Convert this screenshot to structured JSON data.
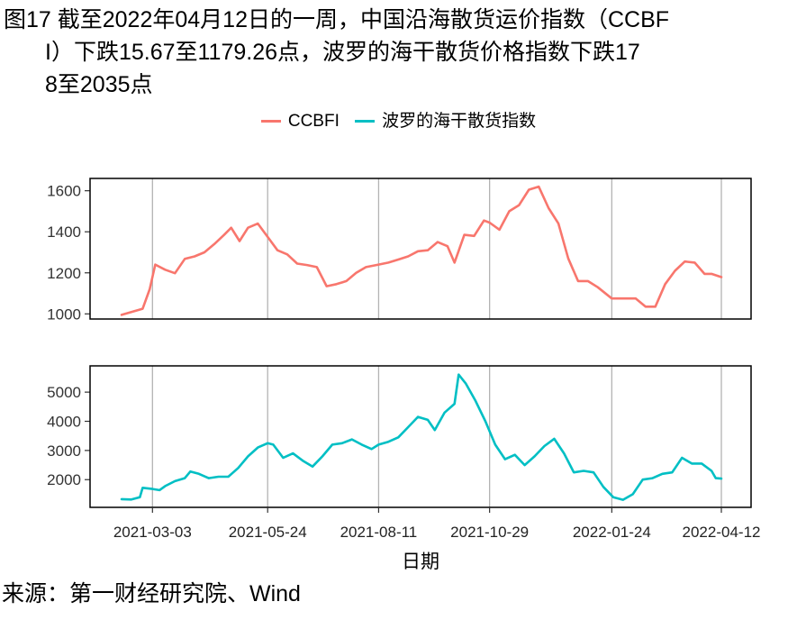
{
  "figure": {
    "title_line1": "图17  截至2022年04月12日的一周，中国沿海散货运价指数（CCBF",
    "title_line2": "I）下跌15.67至1179.26点，波罗的海干散货价格指数下跌17",
    "title_line3": "8至2035点",
    "source": "来源：第一财经研究院、Wind"
  },
  "chart_data": {
    "type": "line",
    "title": "截至2022年04月12日的一周，中国沿海散货运价指数（CCBFI）下跌15.67至1179.26点，波罗的海干散货价格指数下跌178至2035点",
    "xlabel": "日期",
    "legend_position": "top",
    "grid": "vertical",
    "x_ticks": [
      "2021-03-03",
      "2021-05-24",
      "2021-08-11",
      "2021-10-29",
      "2022-01-24",
      "2022-04-12"
    ],
    "xlim": [
      "2021-02-09",
      "2022-04-12"
    ],
    "colors": {
      "ccbfi": "#F8766D",
      "bdi": "#00BFC4"
    },
    "panels": [
      {
        "series_name": "CCBFI",
        "color": "#F8766D",
        "yticks": [
          1000,
          1200,
          1400,
          1600
        ],
        "ylim": [
          975,
          1660
        ],
        "points": [
          [
            "2021-02-09",
            995
          ],
          [
            "2021-02-19",
            1015
          ],
          [
            "2021-02-24",
            1025
          ],
          [
            "2021-03-01",
            1120
          ],
          [
            "2021-03-05",
            1240
          ],
          [
            "2021-03-12",
            1215
          ],
          [
            "2021-03-19",
            1198
          ],
          [
            "2021-03-26",
            1268
          ],
          [
            "2021-04-02",
            1280
          ],
          [
            "2021-04-09",
            1300
          ],
          [
            "2021-04-16",
            1340
          ],
          [
            "2021-04-23",
            1385
          ],
          [
            "2021-04-28",
            1420
          ],
          [
            "2021-05-04",
            1355
          ],
          [
            "2021-05-10",
            1420
          ],
          [
            "2021-05-17",
            1440
          ],
          [
            "2021-05-24",
            1375
          ],
          [
            "2021-05-31",
            1310
          ],
          [
            "2021-06-07",
            1290
          ],
          [
            "2021-06-14",
            1245
          ],
          [
            "2021-06-21",
            1238
          ],
          [
            "2021-06-28",
            1228
          ],
          [
            "2021-07-05",
            1135
          ],
          [
            "2021-07-12",
            1145
          ],
          [
            "2021-07-19",
            1160
          ],
          [
            "2021-07-26",
            1200
          ],
          [
            "2021-08-02",
            1228
          ],
          [
            "2021-08-11",
            1240
          ],
          [
            "2021-08-18",
            1250
          ],
          [
            "2021-08-25",
            1265
          ],
          [
            "2021-09-01",
            1280
          ],
          [
            "2021-09-08",
            1305
          ],
          [
            "2021-09-15",
            1310
          ],
          [
            "2021-09-22",
            1350
          ],
          [
            "2021-09-29",
            1330
          ],
          [
            "2021-10-04",
            1250
          ],
          [
            "2021-10-11",
            1385
          ],
          [
            "2021-10-18",
            1380
          ],
          [
            "2021-10-25",
            1455
          ],
          [
            "2021-10-29",
            1445
          ],
          [
            "2021-11-05",
            1410
          ],
          [
            "2021-11-12",
            1500
          ],
          [
            "2021-11-19",
            1530
          ],
          [
            "2021-11-26",
            1605
          ],
          [
            "2021-12-03",
            1620
          ],
          [
            "2021-12-10",
            1515
          ],
          [
            "2021-12-17",
            1440
          ],
          [
            "2021-12-24",
            1270
          ],
          [
            "2021-12-31",
            1160
          ],
          [
            "2022-01-07",
            1160
          ],
          [
            "2022-01-14",
            1130
          ],
          [
            "2022-01-24",
            1075
          ],
          [
            "2022-02-03",
            1075
          ],
          [
            "2022-02-10",
            1075
          ],
          [
            "2022-02-17",
            1035
          ],
          [
            "2022-02-24",
            1035
          ],
          [
            "2022-03-03",
            1145
          ],
          [
            "2022-03-10",
            1210
          ],
          [
            "2022-03-17",
            1255
          ],
          [
            "2022-03-24",
            1250
          ],
          [
            "2022-03-31",
            1195
          ],
          [
            "2022-04-05",
            1195
          ],
          [
            "2022-04-12",
            1179
          ]
        ]
      },
      {
        "series_name": "波罗的海干散货指数",
        "color": "#00BFC4",
        "yticks": [
          2000,
          3000,
          4000,
          5000
        ],
        "ylim": [
          1050,
          5900
        ],
        "points": [
          [
            "2021-02-09",
            1330
          ],
          [
            "2021-02-16",
            1320
          ],
          [
            "2021-02-22",
            1400
          ],
          [
            "2021-02-24",
            1720
          ],
          [
            "2021-03-03",
            1680
          ],
          [
            "2021-03-08",
            1640
          ],
          [
            "2021-03-12",
            1780
          ],
          [
            "2021-03-19",
            1950
          ],
          [
            "2021-03-26",
            2050
          ],
          [
            "2021-03-30",
            2280
          ],
          [
            "2021-04-05",
            2200
          ],
          [
            "2021-04-12",
            2050
          ],
          [
            "2021-04-19",
            2100
          ],
          [
            "2021-04-26",
            2100
          ],
          [
            "2021-05-03",
            2400
          ],
          [
            "2021-05-10",
            2800
          ],
          [
            "2021-05-17",
            3100
          ],
          [
            "2021-05-24",
            3250
          ],
          [
            "2021-05-28",
            3200
          ],
          [
            "2021-06-04",
            2750
          ],
          [
            "2021-06-11",
            2900
          ],
          [
            "2021-06-18",
            2650
          ],
          [
            "2021-06-25",
            2450
          ],
          [
            "2021-07-02",
            2800
          ],
          [
            "2021-07-09",
            3200
          ],
          [
            "2021-07-16",
            3250
          ],
          [
            "2021-07-23",
            3380
          ],
          [
            "2021-07-30",
            3200
          ],
          [
            "2021-08-06",
            3050
          ],
          [
            "2021-08-11",
            3200
          ],
          [
            "2021-08-18",
            3300
          ],
          [
            "2021-08-25",
            3450
          ],
          [
            "2021-09-01",
            3800
          ],
          [
            "2021-09-08",
            4150
          ],
          [
            "2021-09-15",
            4050
          ],
          [
            "2021-09-20",
            3700
          ],
          [
            "2021-09-27",
            4300
          ],
          [
            "2021-10-04",
            4600
          ],
          [
            "2021-10-07",
            5600
          ],
          [
            "2021-10-12",
            5300
          ],
          [
            "2021-10-19",
            4700
          ],
          [
            "2021-10-26",
            4000
          ],
          [
            "2021-11-02",
            3200
          ],
          [
            "2021-11-09",
            2700
          ],
          [
            "2021-11-16",
            2850
          ],
          [
            "2021-11-23",
            2500
          ],
          [
            "2021-11-30",
            2800
          ],
          [
            "2021-12-07",
            3150
          ],
          [
            "2021-12-14",
            3400
          ],
          [
            "2021-12-21",
            2900
          ],
          [
            "2021-12-28",
            2250
          ],
          [
            "2022-01-04",
            2300
          ],
          [
            "2022-01-11",
            2250
          ],
          [
            "2022-01-18",
            1750
          ],
          [
            "2022-01-25",
            1400
          ],
          [
            "2022-02-01",
            1310
          ],
          [
            "2022-02-08",
            1500
          ],
          [
            "2022-02-15",
            2000
          ],
          [
            "2022-02-22",
            2050
          ],
          [
            "2022-03-01",
            2200
          ],
          [
            "2022-03-08",
            2250
          ],
          [
            "2022-03-15",
            2750
          ],
          [
            "2022-03-22",
            2550
          ],
          [
            "2022-03-29",
            2550
          ],
          [
            "2022-04-05",
            2300
          ],
          [
            "2022-04-08",
            2050
          ],
          [
            "2022-04-12",
            2035
          ]
        ]
      }
    ]
  }
}
